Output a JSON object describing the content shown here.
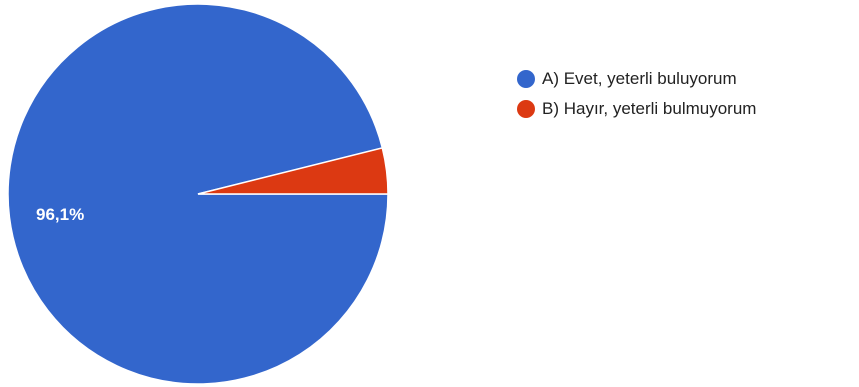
{
  "chart_data": {
    "type": "pie",
    "categories": [
      "A) Evet, yeterli buluyorum",
      "B) Hayır, yeterli bulmuyorum"
    ],
    "values": [
      96.1,
      3.9
    ],
    "colors": [
      "#3366cc",
      "#dc3912"
    ],
    "data_labels": [
      "96,1%",
      ""
    ],
    "legend_position": "right",
    "start_angle_deg": 90,
    "title": ""
  }
}
